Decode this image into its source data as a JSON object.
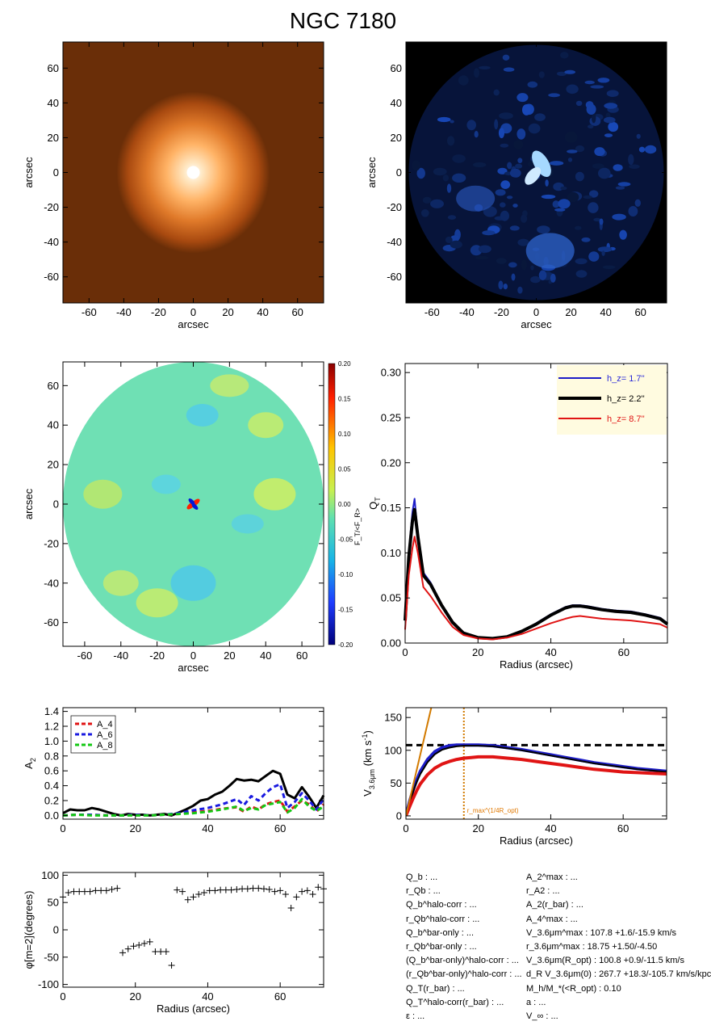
{
  "title": "NGC 7180",
  "chart_data": [
    {
      "type": "heatmap",
      "panel": "stellar-image",
      "xlabel": "arcsec",
      "ylabel": "arcsec",
      "xlim": [
        -75,
        75
      ],
      "ylim": [
        -75,
        75
      ],
      "xticks": [
        -60,
        -40,
        -20,
        0,
        20,
        40,
        60
      ],
      "yticks": [
        -60,
        -40,
        -20,
        0,
        20,
        40,
        60
      ],
      "colormap": "orange",
      "background_color": "#6a2e08"
    },
    {
      "type": "heatmap",
      "panel": "residual-image",
      "xlabel": "arcsec",
      "ylabel": "",
      "xlim": [
        -75,
        75
      ],
      "ylim": [
        -75,
        75
      ],
      "xticks": [
        -60,
        -40,
        -20,
        0,
        20,
        40,
        60
      ],
      "yticks": [
        -60,
        -40,
        -20,
        0,
        20,
        40,
        60
      ],
      "colormap": "blue",
      "background_color": "#000000"
    },
    {
      "type": "heatmap",
      "panel": "force-ratio-map",
      "xlabel": "arcsec",
      "ylabel": "arcsec",
      "xlim": [
        -72,
        72
      ],
      "ylim": [
        -72,
        72
      ],
      "xticks": [
        -60,
        -40,
        -20,
        0,
        20,
        40,
        60
      ],
      "yticks": [
        -60,
        -40,
        -20,
        0,
        20,
        40,
        60
      ],
      "colorbar_label": "F_T/<F_R>",
      "colorbar_ticks": [
        "0.20",
        "0.15",
        "0.10",
        "0.05",
        "0.00",
        "-0.05",
        "-0.10",
        "-0.15",
        "-0.20"
      ],
      "clim": [
        -0.2,
        0.2
      ]
    },
    {
      "type": "line",
      "panel": "qt-profile",
      "xlabel": "Radius (arcsec)",
      "ylabel": "Q_T",
      "xlim": [
        0,
        72
      ],
      "ylim": [
        0,
        0.31
      ],
      "xticks": [
        0,
        20,
        40,
        60
      ],
      "yticks": [
        "0.00",
        "0.05",
        "0.10",
        "0.15",
        "0.20",
        "0.25",
        "0.30"
      ],
      "legend_position": "top-right",
      "legend_bg": "#fffbe0",
      "series": [
        {
          "name": "h_z= 1.7''",
          "color": "#1d1dc8",
          "legend_text_color": "#2a2ad8",
          "width": 2,
          "x": [
            0,
            1,
            2,
            2.6,
            3.5,
            5,
            7,
            10,
            13,
            16,
            20,
            24,
            28,
            32,
            36,
            40,
            44,
            46,
            48,
            50,
            54,
            58,
            62,
            66,
            70,
            72
          ],
          "y": [
            0.025,
            0.1,
            0.145,
            0.16,
            0.12,
            0.078,
            0.067,
            0.043,
            0.024,
            0.012,
            0.006,
            0.005,
            0.007,
            0.013,
            0.022,
            0.032,
            0.04,
            0.042,
            0.042,
            0.041,
            0.038,
            0.036,
            0.035,
            0.032,
            0.028,
            0.022
          ]
        },
        {
          "name": "h_z= 2.2''",
          "color": "#000000",
          "legend_text_color": "#000000",
          "width": 4,
          "x": [
            0,
            1,
            2,
            2.6,
            3.5,
            5,
            7,
            10,
            13,
            16,
            20,
            24,
            28,
            32,
            36,
            40,
            44,
            46,
            48,
            50,
            54,
            58,
            62,
            66,
            70,
            72
          ],
          "y": [
            0.025,
            0.095,
            0.135,
            0.148,
            0.118,
            0.075,
            0.065,
            0.042,
            0.023,
            0.011,
            0.006,
            0.005,
            0.007,
            0.013,
            0.021,
            0.031,
            0.039,
            0.041,
            0.041,
            0.04,
            0.037,
            0.035,
            0.034,
            0.031,
            0.027,
            0.021
          ]
        },
        {
          "name": "h_z= 8.7''",
          "color": "#e01414",
          "legend_text_color": "#e01414",
          "width": 2,
          "x": [
            0,
            1,
            2,
            2.6,
            3.5,
            5,
            7,
            10,
            13,
            16,
            20,
            24,
            28,
            32,
            36,
            40,
            44,
            46,
            48,
            50,
            54,
            58,
            62,
            66,
            70,
            72
          ],
          "y": [
            0.015,
            0.075,
            0.105,
            0.118,
            0.1,
            0.062,
            0.052,
            0.034,
            0.018,
            0.009,
            0.005,
            0.004,
            0.006,
            0.01,
            0.016,
            0.022,
            0.027,
            0.029,
            0.03,
            0.029,
            0.027,
            0.026,
            0.025,
            0.023,
            0.021,
            0.017
          ]
        }
      ]
    },
    {
      "type": "line",
      "panel": "fourier-amplitudes",
      "xlabel": "",
      "ylabel": "A_2",
      "xlim": [
        0,
        72
      ],
      "ylim": [
        -0.05,
        1.45
      ],
      "xticks": [
        0,
        20,
        40,
        60
      ],
      "yticks": [
        "0.0",
        "0.2",
        "0.4",
        "0.6",
        "0.8",
        "1.0",
        "1.2",
        "1.4"
      ],
      "legend_position": "top-left",
      "series": [
        {
          "name": "A_2",
          "color": "#000000",
          "dash": "",
          "width": 3,
          "in_legend": false,
          "x": [
            0,
            2,
            4,
            6,
            8,
            10,
            12,
            14,
            16,
            18,
            20,
            22,
            24,
            26,
            28,
            30,
            32,
            34,
            36,
            38,
            40,
            42,
            44,
            46,
            48,
            50,
            52,
            54,
            56,
            58,
            60,
            62,
            64,
            66,
            68,
            70,
            72
          ],
          "y": [
            0.03,
            0.08,
            0.07,
            0.07,
            0.1,
            0.08,
            0.05,
            0.02,
            0.0,
            0.02,
            0.01,
            0.01,
            0.0,
            0.01,
            0.02,
            0.0,
            0.04,
            0.08,
            0.13,
            0.2,
            0.22,
            0.28,
            0.32,
            0.4,
            0.49,
            0.47,
            0.48,
            0.46,
            0.53,
            0.6,
            0.56,
            0.28,
            0.23,
            0.38,
            0.25,
            0.1,
            0.27
          ]
        },
        {
          "name": "A_4",
          "color": "#e01414",
          "dash": "6,4",
          "width": 3,
          "in_legend": true,
          "x": [
            0,
            4,
            8,
            12,
            16,
            20,
            24,
            28,
            32,
            36,
            40,
            44,
            48,
            50,
            52,
            54,
            56,
            58,
            60,
            62,
            64,
            66,
            68,
            70,
            72
          ],
          "y": [
            0.0,
            0.01,
            0.01,
            0.0,
            0.0,
            0.01,
            0.0,
            0.01,
            0.02,
            0.04,
            0.06,
            0.09,
            0.11,
            0.05,
            0.12,
            0.08,
            0.15,
            0.18,
            0.2,
            0.05,
            0.12,
            0.2,
            0.15,
            0.05,
            0.15
          ]
        },
        {
          "name": "A_6",
          "color": "#1a1ae0",
          "dash": "6,4",
          "width": 3,
          "in_legend": true,
          "x": [
            0,
            4,
            8,
            12,
            16,
            20,
            24,
            28,
            32,
            36,
            40,
            44,
            48,
            50,
            52,
            54,
            56,
            58,
            60,
            62,
            64,
            66,
            68,
            70,
            72
          ],
          "y": [
            0.0,
            0.01,
            0.01,
            0.0,
            0.0,
            0.01,
            0.0,
            0.01,
            0.03,
            0.07,
            0.1,
            0.15,
            0.22,
            0.14,
            0.26,
            0.2,
            0.3,
            0.38,
            0.42,
            0.1,
            0.18,
            0.3,
            0.2,
            0.08,
            0.22
          ]
        },
        {
          "name": "A_8",
          "color": "#14c814",
          "dash": "6,4",
          "width": 3,
          "in_legend": true,
          "x": [
            0,
            4,
            8,
            12,
            16,
            20,
            24,
            28,
            32,
            36,
            40,
            44,
            48,
            50,
            52,
            54,
            56,
            58,
            60,
            62,
            64,
            66,
            68,
            70,
            72
          ],
          "y": [
            0.0,
            0.01,
            0.0,
            0.0,
            0.0,
            0.0,
            0.0,
            0.01,
            0.02,
            0.03,
            0.05,
            0.08,
            0.12,
            0.06,
            0.1,
            0.08,
            0.14,
            0.16,
            0.18,
            0.04,
            0.1,
            0.22,
            0.12,
            0.06,
            0.12
          ]
        }
      ]
    },
    {
      "type": "line",
      "panel": "rotation-curve",
      "xlabel": "Radius (arcsec)",
      "ylabel": "V_3.6μm (km s^-1)",
      "xlim": [
        0,
        72
      ],
      "ylim": [
        -5,
        165
      ],
      "xticks": [
        0,
        20,
        40,
        60
      ],
      "yticks": [
        0,
        50,
        100,
        150
      ],
      "vmax_line": 107.8,
      "rmax_line": 16,
      "rmax_label": "r_max^(1/4R_opt)",
      "rmax_label_color": "#e07800",
      "series": [
        {
          "name": "",
          "color": "#1d1dc8",
          "width": 4,
          "x": [
            0,
            1,
            2,
            3,
            4,
            6,
            8,
            10,
            12,
            14,
            16,
            18,
            20,
            24,
            28,
            32,
            36,
            40,
            44,
            48,
            52,
            56,
            60,
            64,
            68,
            72
          ],
          "y": [
            0,
            22,
            40,
            55,
            68,
            86,
            98,
            104,
            107,
            108,
            108,
            108,
            108,
            107,
            104,
            101,
            97,
            93,
            89,
            85,
            81,
            78,
            75,
            72,
            70,
            68
          ]
        },
        {
          "name": "",
          "color": "#000000",
          "width": 2,
          "x": [
            0,
            1,
            2,
            3,
            4,
            6,
            8,
            10,
            12,
            14,
            16,
            18,
            20,
            24,
            28,
            32,
            36,
            40,
            44,
            48,
            52,
            56,
            60,
            64,
            68,
            72
          ],
          "y": [
            0,
            20,
            37,
            52,
            64,
            82,
            94,
            101,
            104,
            106,
            107,
            107,
            107,
            106,
            103,
            100,
            96,
            92,
            88,
            84,
            80,
            77,
            74,
            71,
            69,
            67
          ]
        },
        {
          "name": "",
          "color": "#e01414",
          "width": 4,
          "x": [
            0,
            1,
            2,
            3,
            4,
            6,
            8,
            10,
            12,
            14,
            16,
            18,
            20,
            24,
            28,
            32,
            36,
            40,
            44,
            48,
            52,
            56,
            60,
            64,
            68,
            72
          ],
          "y": [
            0,
            14,
            27,
            39,
            49,
            63,
            73,
            79,
            83,
            86,
            88,
            89,
            90,
            90,
            88,
            86,
            83,
            80,
            77,
            74,
            71,
            69,
            67,
            66,
            65,
            64
          ]
        },
        {
          "name": "",
          "color": "#d27a00",
          "width": 2,
          "x": [
            0,
            7
          ],
          "y": [
            0,
            165
          ]
        }
      ]
    },
    {
      "type": "scatter",
      "panel": "phase-profile",
      "xlabel": "Radius (arcsec)",
      "ylabel": "φ[m=2](degrees)",
      "xlim": [
        0,
        72
      ],
      "ylim": [
        -105,
        105
      ],
      "xticks": [
        0,
        20,
        40,
        60
      ],
      "yticks": [
        100,
        50,
        0,
        -50,
        -100
      ],
      "marker": "+",
      "x": [
        0,
        1.5,
        3,
        4.5,
        6,
        7.5,
        9,
        10.5,
        12,
        13.5,
        15,
        16.5,
        18,
        19.5,
        21,
        22.5,
        24,
        25.5,
        27,
        28.5,
        30,
        31.5,
        33,
        34.5,
        36,
        37.5,
        39,
        40.5,
        42,
        43.5,
        45,
        46.5,
        48,
        49.5,
        51,
        52.5,
        54,
        55.5,
        57,
        58.5,
        60,
        61.5,
        63,
        64.5,
        66,
        67.5,
        69,
        70.5,
        72
      ],
      "y": [
        60,
        68,
        70,
        70,
        70,
        70,
        72,
        72,
        72,
        74,
        76,
        -42,
        -35,
        -30,
        -28,
        -25,
        -22,
        -40,
        -40,
        -40,
        -65,
        73,
        70,
        55,
        60,
        65,
        68,
        72,
        72,
        73,
        73,
        73,
        74,
        75,
        75,
        76,
        76,
        75,
        74,
        70,
        72,
        65,
        40,
        60,
        70,
        72,
        65,
        78,
        75
      ]
    }
  ],
  "table": {
    "left": [
      {
        "label": "Q_b : ..."
      },
      {
        "label": "r_Qb : ..."
      },
      {
        "label": "Q_b^halo-corr : ..."
      },
      {
        "label": "r_Qb^halo-corr : ..."
      },
      {
        "label": "Q_b^bar-only : ..."
      },
      {
        "label": "r_Qb^bar-only : ..."
      },
      {
        "label": "(Q_b^bar-only)^halo-corr : ..."
      },
      {
        "label": "(r_Qb^bar-only)^halo-corr : ..."
      },
      {
        "label": "Q_T(r_bar) : ..."
      },
      {
        "label": "Q_T^halo-corr(r_bar) : ..."
      },
      {
        "label": "ε : ..."
      }
    ],
    "right": [
      {
        "label": "A_2^max : ..."
      },
      {
        "label": "r_A2 : ..."
      },
      {
        "label": "A_2(r_bar) : ..."
      },
      {
        "label": "A_4^max : ..."
      },
      {
        "label": "V_3.6μm^max : 107.8 +1.6/-15.9 km/s"
      },
      {
        "label": "r_3.6μm^max : 18.75 +1.50/-4.50"
      },
      {
        "label": "V_3.6μm(R_opt) : 100.8 +0.9/-11.5 km/s"
      },
      {
        "label": "d_R V_3.6μm(0) : 267.7 +18.3/-105.7 km/s/kpc"
      },
      {
        "label": "M_h/M_*(<R_opt) : 0.10"
      },
      {
        "label": "a : ..."
      },
      {
        "label": "V_∞ : ..."
      }
    ]
  }
}
